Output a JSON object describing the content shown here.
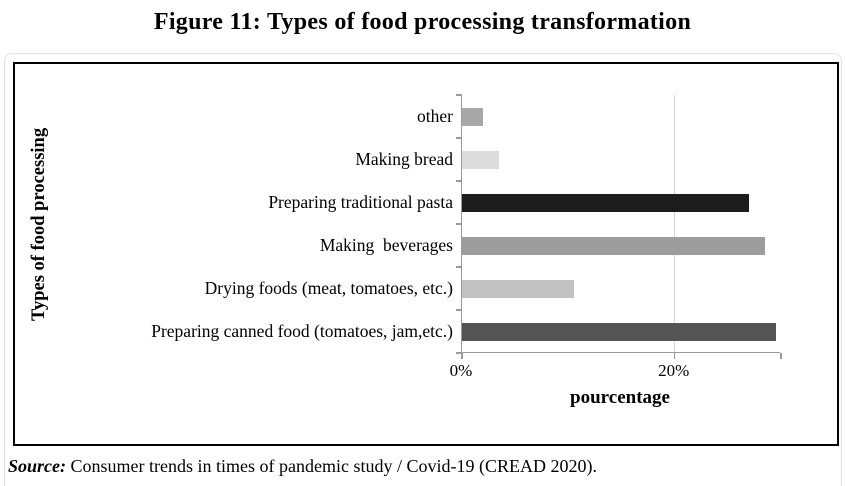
{
  "page": {
    "title": "Figure 11: Types of food processing transformation",
    "source": {
      "label": "Source:",
      "text": " Consumer trends in times of pandemic study / Covid-19 (CREAD 2020)."
    }
  },
  "chart_data": {
    "type": "bar",
    "orientation": "horizontal",
    "title": "Figure 11: Types of food processing transformation",
    "xlabel": "pourcentage",
    "ylabel": "Types of food processing",
    "xlim": [
      0,
      30
    ],
    "x_ticks": [
      {
        "value": 0,
        "label": "0%"
      },
      {
        "value": 20,
        "label": "20%"
      },
      {
        "value": 30,
        "label": ""
      }
    ],
    "gridlines_x": [
      20
    ],
    "grid": "single vertical gridline at 20%",
    "legend": "none",
    "plot_background": "#ffffff",
    "categories_top_to_bottom": [
      "other",
      "Making bread",
      "Preparing traditional pasta",
      "Making  beverages",
      "Drying foods (meat, tomatoes, etc.)",
      "Preparing canned food (tomatoes, jam,etc.)"
    ],
    "values_percent": [
      2,
      3.5,
      27,
      28.5,
      10.5,
      29.5
    ],
    "bar_colors": [
      "#a8a8a8",
      "#dcdcdc",
      "#1c1c1c",
      "#9c9c9c",
      "#c1c1c1",
      "#545454"
    ],
    "axis_color": "#9a9a9a",
    "gridline_color": "#d6d6d6"
  }
}
